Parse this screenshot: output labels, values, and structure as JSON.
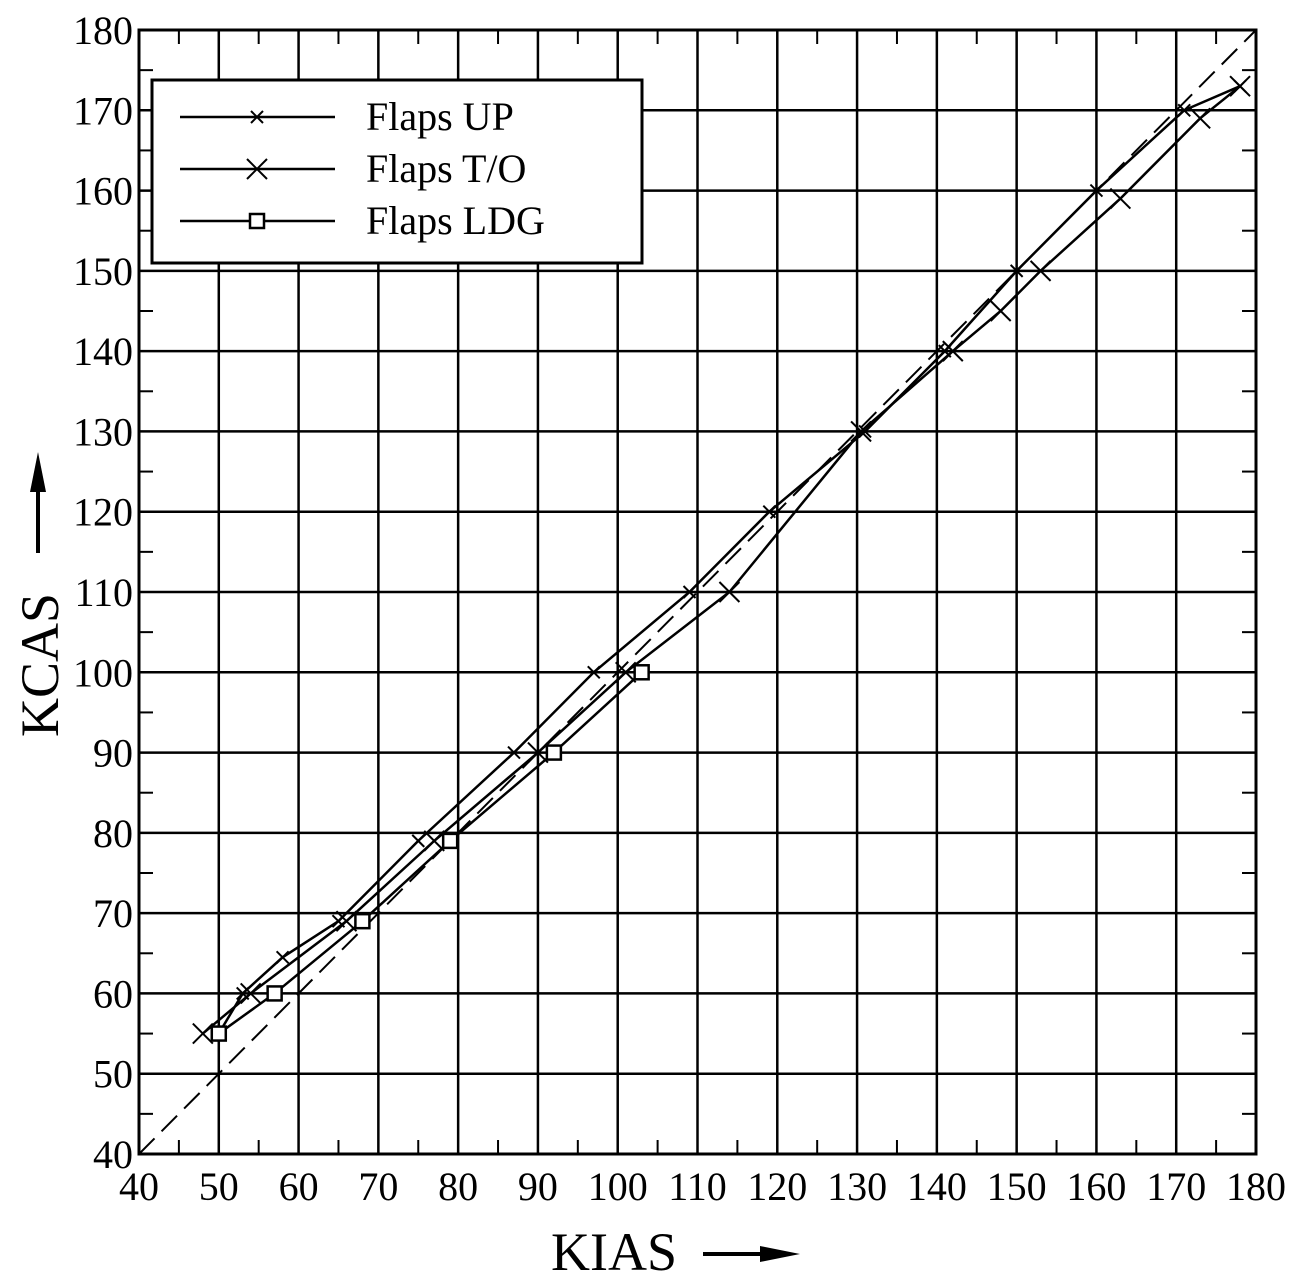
{
  "chart_data": {
    "type": "line",
    "xlabel": "KIAS",
    "ylabel": "KCAS",
    "xlim": [
      40,
      180
    ],
    "ylim": [
      40,
      180
    ],
    "xticks": [
      40,
      50,
      60,
      70,
      80,
      90,
      100,
      110,
      120,
      130,
      140,
      150,
      160,
      170,
      180
    ],
    "yticks": [
      40,
      50,
      60,
      70,
      80,
      90,
      100,
      110,
      120,
      130,
      140,
      150,
      160,
      170,
      180
    ],
    "grid": true,
    "legend_position": "top-left",
    "reference_line": {
      "style": "dashed",
      "points": [
        [
          40,
          40
        ],
        [
          180,
          180
        ]
      ]
    },
    "series": [
      {
        "name": "Flaps UP",
        "marker": "small-x",
        "points": [
          [
            50,
            55
          ],
          [
            53,
            60
          ],
          [
            58,
            64.5
          ],
          [
            65,
            69
          ],
          [
            75,
            79
          ],
          [
            87,
            90
          ],
          [
            97,
            100
          ],
          [
            109,
            110
          ],
          [
            119,
            120
          ],
          [
            131,
            130
          ],
          [
            141,
            140
          ],
          [
            150,
            150
          ],
          [
            160,
            160
          ],
          [
            171,
            170
          ],
          [
            178,
            173
          ]
        ]
      },
      {
        "name": "Flaps T/O",
        "marker": "large-x",
        "points": [
          [
            48,
            55
          ],
          [
            54,
            60
          ],
          [
            66,
            69
          ],
          [
            77,
            79
          ],
          [
            90,
            90
          ],
          [
            101,
            100
          ],
          [
            114,
            110
          ],
          [
            130.5,
            130
          ],
          [
            142,
            140
          ],
          [
            148,
            145
          ],
          [
            153,
            150
          ],
          [
            163,
            159
          ],
          [
            173,
            169
          ],
          [
            178,
            173
          ]
        ]
      },
      {
        "name": "Flaps LDG",
        "marker": "square",
        "points": [
          [
            50,
            55
          ],
          [
            57,
            60
          ],
          [
            68,
            69
          ],
          [
            79,
            79
          ],
          [
            92,
            90
          ],
          [
            103,
            100
          ]
        ]
      }
    ]
  }
}
